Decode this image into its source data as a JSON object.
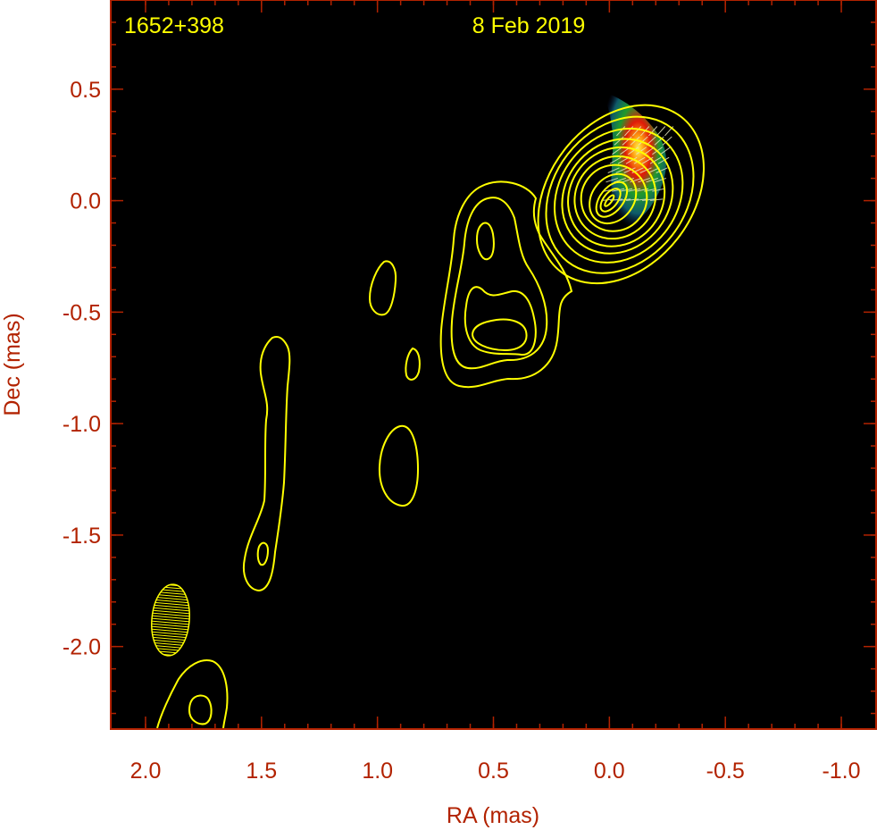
{
  "chart_data": {
    "type": "contour",
    "source_name": "1652+398",
    "epoch": "8 Feb 2019",
    "xlabel": "RA (mas)",
    "ylabel": "Dec (mas)",
    "xlim": [
      2.15,
      -1.15
    ],
    "ylim": [
      -2.37,
      0.9
    ],
    "x_ticks": [
      2.0,
      1.5,
      1.0,
      0.5,
      0.0,
      -0.5,
      -1.0
    ],
    "x_tick_labels": [
      "2.0",
      "1.5",
      "1.0",
      "0.5",
      "0.0",
      "-0.5",
      "-1.0"
    ],
    "y_ticks": [
      0.5,
      0.0,
      -0.5,
      -1.0,
      -1.5,
      -2.0
    ],
    "y_tick_labels": [
      "0.5",
      "0.0",
      "-0.5",
      "-1.0",
      "-1.5",
      "-2.0"
    ],
    "core_contours": {
      "center": [
        0.0,
        0.0
      ],
      "semi_axes_ra": [
        0.01,
        0.03,
        0.05,
        0.09,
        0.14,
        0.17,
        0.2,
        0.225,
        0.255,
        0.285,
        0.31
      ],
      "semi_axes_dec": [
        0.03,
        0.06,
        0.09,
        0.12,
        0.15,
        0.19,
        0.23,
        0.27,
        0.32,
        0.38,
        0.44
      ]
    },
    "polarized_intensity_peak": [
      -0.13,
      0.18
    ],
    "beam": {
      "center": [
        1.88,
        -1.87
      ],
      "major_mas": 0.34,
      "minor_mas": 0.16,
      "pa_deg": 5
    },
    "plot_background": "#000000",
    "contour_color": "#ffff00",
    "axis_label_color": "#b22200",
    "header_text_color": "#ffff00"
  }
}
